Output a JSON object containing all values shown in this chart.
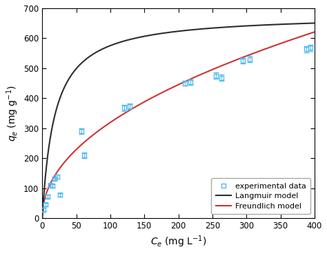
{
  "exp_x": [
    2,
    5,
    8,
    12,
    15,
    18,
    22,
    26,
    58,
    62,
    120,
    128,
    210,
    218,
    255,
    263,
    295,
    305,
    388,
    394
  ],
  "exp_y": [
    28,
    45,
    72,
    110,
    108,
    132,
    138,
    78,
    290,
    210,
    368,
    373,
    450,
    453,
    475,
    468,
    525,
    530,
    563,
    568
  ],
  "exp_yerr": [
    6,
    6,
    6,
    6,
    6,
    6,
    6,
    6,
    9,
    9,
    10,
    10,
    9,
    9,
    10,
    10,
    10,
    10,
    10,
    10
  ],
  "langmuir_qm": 680.0,
  "langmuir_KL": 0.055,
  "freundlich_KF": 35.0,
  "freundlich_n": 0.48,
  "xlim": [
    0,
    400
  ],
  "ylim": [
    0,
    700
  ],
  "xticks": [
    0,
    50,
    100,
    150,
    200,
    250,
    300,
    350,
    400
  ],
  "yticks": [
    0,
    100,
    200,
    300,
    400,
    500,
    600,
    700
  ],
  "langmuir_color": "#2d2d2d",
  "freundlich_color": "#cc3333",
  "marker_facecolor": "none",
  "marker_edgecolor": "#55bbee",
  "marker_capcolor": "#55bbee",
  "background_color": "#ffffff",
  "legend_exp": "experimental data",
  "legend_langmuir": "Langmuir model",
  "legend_freundlich": "Freundlich model"
}
